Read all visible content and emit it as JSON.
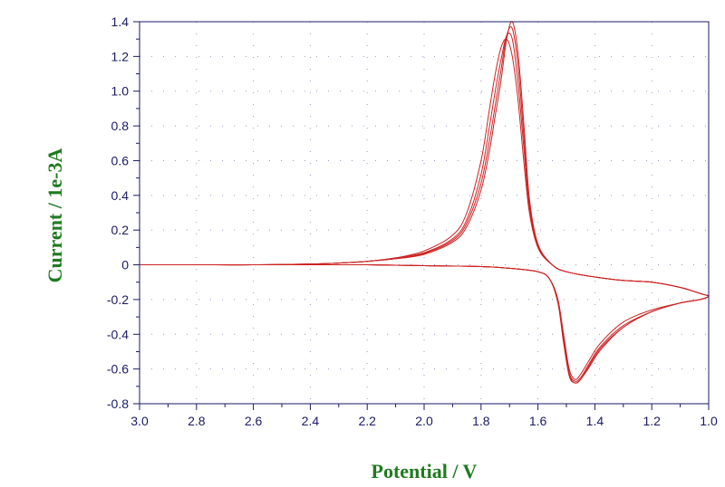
{
  "chart_data": {
    "type": "line",
    "title": "",
    "xlabel": "Potential / V",
    "ylabel": "Current / 1e-3A",
    "xlim": [
      3.0,
      1.0
    ],
    "ylim": [
      -0.8,
      1.4
    ],
    "x_reversed": true,
    "grid": "dotted",
    "x_ticks": [
      "3.0",
      "2.8",
      "2.6",
      "2.4",
      "2.2",
      "2.0",
      "1.8",
      "1.6",
      "1.4",
      "1.2",
      "1.0"
    ],
    "y_ticks": [
      "-0.8",
      "-0.6",
      "-0.4",
      "-0.2",
      "0",
      "0.2",
      "0.4",
      "0.6",
      "0.8",
      "1.0",
      "1.2",
      "1.4"
    ],
    "colors": {
      "trace": "#cc2222",
      "axis": "#1a1a66",
      "grid": "#9999cc",
      "label": "#1f7a1f"
    },
    "series": [
      {
        "x": [
          3.0,
          2.8,
          2.6,
          2.4,
          2.3,
          2.2,
          2.1,
          2.0,
          1.9,
          1.85,
          1.8,
          1.77,
          1.75,
          1.73,
          1.71,
          1.69,
          1.67,
          1.65,
          1.63,
          1.6,
          1.55,
          1.5,
          1.4,
          1.3,
          1.2,
          1.1,
          1.02,
          1.0,
          1.03,
          1.1,
          1.2,
          1.3,
          1.38,
          1.42,
          1.45,
          1.47,
          1.49,
          1.51,
          1.53,
          1.56,
          1.6,
          1.7,
          1.8,
          2.0,
          2.2,
          2.4,
          2.6,
          2.8,
          3.0
        ],
        "y": [
          0.0,
          0.0,
          0.0,
          0.005,
          0.01,
          0.02,
          0.04,
          0.08,
          0.17,
          0.3,
          0.6,
          0.9,
          1.1,
          1.25,
          1.3,
          1.2,
          0.95,
          0.6,
          0.3,
          0.1,
          0.0,
          -0.04,
          -0.07,
          -0.09,
          -0.1,
          -0.13,
          -0.17,
          -0.18,
          -0.2,
          -0.22,
          -0.26,
          -0.33,
          -0.45,
          -0.55,
          -0.63,
          -0.66,
          -0.6,
          -0.4,
          -0.2,
          -0.08,
          -0.04,
          -0.02,
          -0.01,
          -0.005,
          0.0,
          0.0,
          0.0,
          0.0,
          0.0
        ]
      },
      {
        "x": [
          3.0,
          2.8,
          2.6,
          2.4,
          2.3,
          2.2,
          2.1,
          2.0,
          1.9,
          1.85,
          1.8,
          1.77,
          1.75,
          1.73,
          1.71,
          1.69,
          1.67,
          1.65,
          1.63,
          1.6,
          1.55,
          1.5,
          1.4,
          1.3,
          1.2,
          1.1,
          1.02,
          1.0,
          1.03,
          1.1,
          1.2,
          1.3,
          1.38,
          1.42,
          1.45,
          1.47,
          1.49,
          1.51,
          1.53,
          1.56,
          1.6,
          1.7,
          1.8,
          2.0,
          2.2,
          2.4,
          2.6,
          2.8,
          3.0
        ],
        "y": [
          0.0,
          0.0,
          0.0,
          0.005,
          0.01,
          0.02,
          0.04,
          0.07,
          0.15,
          0.26,
          0.52,
          0.8,
          1.0,
          1.18,
          1.32,
          1.3,
          1.05,
          0.68,
          0.33,
          0.1,
          0.0,
          -0.04,
          -0.07,
          -0.09,
          -0.1,
          -0.13,
          -0.17,
          -0.18,
          -0.2,
          -0.22,
          -0.27,
          -0.35,
          -0.47,
          -0.57,
          -0.65,
          -0.67,
          -0.62,
          -0.42,
          -0.2,
          -0.08,
          -0.04,
          -0.02,
          -0.01,
          -0.005,
          0.0,
          0.0,
          0.0,
          0.0,
          0.0
        ]
      },
      {
        "x": [
          3.0,
          2.8,
          2.6,
          2.4,
          2.3,
          2.2,
          2.1,
          2.0,
          1.9,
          1.85,
          1.8,
          1.77,
          1.75,
          1.73,
          1.71,
          1.69,
          1.67,
          1.65,
          1.63,
          1.6,
          1.55,
          1.5,
          1.4,
          1.3,
          1.2,
          1.1,
          1.02,
          1.0,
          1.03,
          1.1,
          1.2,
          1.3,
          1.38,
          1.42,
          1.45,
          1.47,
          1.49,
          1.51,
          1.53,
          1.56,
          1.6,
          1.7,
          1.8,
          2.0,
          2.2,
          2.4,
          2.6,
          2.8,
          3.0
        ],
        "y": [
          0.0,
          0.0,
          0.0,
          0.005,
          0.01,
          0.02,
          0.035,
          0.065,
          0.14,
          0.24,
          0.47,
          0.72,
          0.92,
          1.12,
          1.32,
          1.36,
          1.15,
          0.75,
          0.36,
          0.11,
          0.0,
          -0.04,
          -0.07,
          -0.09,
          -0.1,
          -0.13,
          -0.17,
          -0.18,
          -0.2,
          -0.22,
          -0.27,
          -0.36,
          -0.48,
          -0.58,
          -0.66,
          -0.68,
          -0.63,
          -0.44,
          -0.21,
          -0.08,
          -0.04,
          -0.02,
          -0.01,
          -0.005,
          0.0,
          0.0,
          0.0,
          0.0,
          0.0
        ]
      },
      {
        "x": [
          3.0,
          2.8,
          2.6,
          2.4,
          2.3,
          2.2,
          2.1,
          2.0,
          1.9,
          1.85,
          1.8,
          1.77,
          1.75,
          1.73,
          1.71,
          1.69,
          1.67,
          1.65,
          1.63,
          1.6,
          1.55,
          1.5,
          1.4,
          1.3,
          1.2,
          1.1,
          1.02,
          1.0,
          1.03,
          1.1,
          1.2,
          1.3,
          1.38,
          1.42,
          1.45,
          1.47,
          1.49,
          1.51,
          1.53,
          1.56,
          1.6,
          1.7,
          1.8,
          2.0,
          2.2,
          2.4,
          2.6,
          2.8,
          3.0
        ],
        "y": [
          0.0,
          0.0,
          0.0,
          0.005,
          0.01,
          0.02,
          0.035,
          0.06,
          0.13,
          0.22,
          0.43,
          0.66,
          0.86,
          1.06,
          1.3,
          1.4,
          1.22,
          0.82,
          0.38,
          0.12,
          0.0,
          -0.04,
          -0.07,
          -0.09,
          -0.1,
          -0.13,
          -0.17,
          -0.18,
          -0.2,
          -0.22,
          -0.27,
          -0.36,
          -0.49,
          -0.59,
          -0.66,
          -0.68,
          -0.64,
          -0.45,
          -0.22,
          -0.08,
          -0.04,
          -0.02,
          -0.01,
          -0.005,
          0.0,
          0.0,
          0.0,
          0.0,
          0.0
        ]
      }
    ]
  }
}
